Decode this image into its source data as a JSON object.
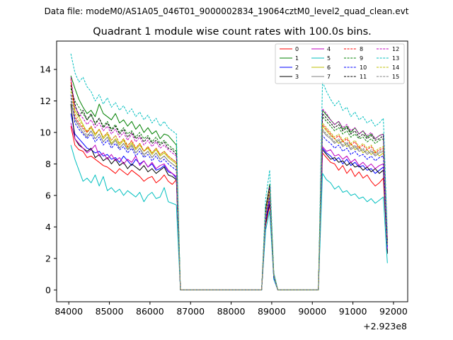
{
  "chart_data": {
    "type": "line",
    "suptitle": "Data file: modeM0/AS1A05_046T01_9000002834_19064cztM0_level2_quad_clean.evt",
    "title": "Quadrant 1 module wise count rates with 100.0s bins.",
    "xlabel": "",
    "ylabel": "",
    "x_offset_label": "+2.923e8",
    "xlim": [
      83700,
      92350
    ],
    "ylim": [
      -0.75,
      15.8
    ],
    "xticks": [
      84000,
      85000,
      86000,
      87000,
      88000,
      89000,
      90000,
      91000,
      92000
    ],
    "yticks": [
      0,
      2,
      4,
      6,
      8,
      10,
      12,
      14
    ],
    "legend_position": "top-right",
    "time_axis": {
      "start": 84050,
      "step": 100,
      "active_segments": [
        {
          "start": 84050,
          "n": 27
        },
        {
          "start": 90250,
          "n": 17
        }
      ],
      "flare_points": [
        88850,
        88950,
        89050
      ],
      "zero_points": [
        86750,
        88750,
        89150,
        90150
      ]
    },
    "series": [
      {
        "name": "0",
        "color": "#ff0000",
        "dash": false,
        "seg1": [
          10.4,
          9.2,
          8.9,
          8.8,
          8.4,
          8.5,
          8.3,
          8.1,
          7.9,
          7.8,
          7.6,
          7.4,
          7.7,
          7.5,
          7.3,
          7.6,
          7.4,
          7.2,
          6.9,
          7.1,
          7.2,
          6.8,
          7.0,
          7.3,
          6.9,
          6.7,
          7.0
        ],
        "flare": [
          4.1,
          5.4,
          0.8
        ],
        "seg2": [
          8.7,
          8.4,
          8.1,
          8.0,
          7.6,
          7.9,
          7.4,
          7.7,
          7.2,
          7.5,
          7.1,
          7.3,
          6.9,
          6.6,
          6.8,
          7.1,
          2.5
        ]
      },
      {
        "name": "1",
        "color": "#008000",
        "dash": false,
        "seg1": [
          13.6,
          12.8,
          12.1,
          11.6,
          11.2,
          11.4,
          11.0,
          11.8,
          11.2,
          11.0,
          10.8,
          11.2,
          10.6,
          10.8,
          10.4,
          10.7,
          10.2,
          10.5,
          10.0,
          10.3,
          9.9,
          10.1,
          9.6,
          9.9,
          9.8,
          9.5,
          9.2
        ],
        "flare": [
          5.2,
          6.7,
          1.0
        ],
        "seg2": [
          11.4,
          11.1,
          10.8,
          10.5,
          10.7,
          10.2,
          10.4,
          10.0,
          10.3,
          9.9,
          10.1,
          9.7,
          9.9,
          9.6,
          9.8,
          9.9,
          3.1
        ]
      },
      {
        "name": "2",
        "color": "#0000ff",
        "dash": false,
        "seg1": [
          11.2,
          9.9,
          9.6,
          9.3,
          9.0,
          8.9,
          8.7,
          8.8,
          8.5,
          8.6,
          8.3,
          8.4,
          8.1,
          8.5,
          8.2,
          7.9,
          8.3,
          8.0,
          8.2,
          7.8,
          8.0,
          7.6,
          7.7,
          7.9,
          7.5,
          7.4,
          7.1
        ],
        "flare": [
          4.3,
          5.6,
          0.7
        ],
        "seg2": [
          9.0,
          8.7,
          8.5,
          8.2,
          8.4,
          8.0,
          8.3,
          7.9,
          8.1,
          7.8,
          7.9,
          7.6,
          7.7,
          7.4,
          7.6,
          7.8,
          2.4
        ]
      },
      {
        "name": "3",
        "color": "#000000",
        "dash": false,
        "seg1": [
          11.8,
          9.6,
          9.2,
          9.0,
          8.8,
          9.0,
          8.4,
          8.6,
          8.2,
          8.4,
          8.0,
          8.3,
          7.9,
          8.1,
          7.7,
          8.0,
          7.8,
          7.6,
          7.9,
          7.5,
          7.7,
          7.4,
          7.6,
          7.8,
          7.3,
          7.2,
          7.0
        ],
        "flare": [
          4.2,
          5.5,
          0.8
        ],
        "seg2": [
          8.9,
          8.6,
          8.3,
          8.4,
          8.1,
          8.2,
          7.9,
          8.1,
          7.8,
          7.9,
          7.6,
          7.8,
          7.5,
          7.7,
          7.4,
          7.6,
          2.3
        ]
      },
      {
        "name": "4",
        "color": "#bf00bf",
        "dash": false,
        "seg1": [
          10.6,
          9.6,
          9.3,
          9.0,
          8.7,
          8.9,
          9.2,
          8.5,
          8.7,
          8.3,
          8.6,
          8.2,
          8.4,
          8.0,
          8.3,
          8.1,
          8.5,
          7.9,
          8.2,
          7.8,
          8.1,
          7.7,
          7.9,
          8.0,
          7.6,
          7.4,
          7.2
        ],
        "flare": [
          4.4,
          5.7,
          0.8
        ],
        "seg2": [
          9.1,
          8.8,
          8.9,
          8.5,
          8.6,
          8.3,
          8.5,
          8.1,
          8.3,
          7.9,
          8.1,
          7.8,
          8.0,
          7.7,
          7.9,
          8.0,
          2.6
        ]
      },
      {
        "name": "5",
        "color": "#00bfbf",
        "dash": false,
        "seg1": [
          9.2,
          8.3,
          7.6,
          6.9,
          7.1,
          6.8,
          7.3,
          6.6,
          7.2,
          6.3,
          6.5,
          6.2,
          6.4,
          6.0,
          6.3,
          6.1,
          5.9,
          6.2,
          5.6,
          6.0,
          6.2,
          5.8,
          5.9,
          6.5,
          5.6,
          5.5,
          5.4
        ],
        "flare": [
          3.8,
          5.0,
          0.7
        ],
        "seg2": [
          7.4,
          7.0,
          6.8,
          6.4,
          6.6,
          6.2,
          6.3,
          6.0,
          6.1,
          5.8,
          5.9,
          5.6,
          5.8,
          5.5,
          5.7,
          5.9,
          1.7
        ]
      },
      {
        "name": "6",
        "color": "#bfbf00",
        "dash": false,
        "seg1": [
          13.2,
          11.4,
          11.0,
          10.5,
          10.0,
          10.3,
          9.8,
          10.2,
          9.6,
          9.9,
          9.3,
          9.6,
          9.2,
          9.5,
          9.0,
          9.3,
          8.9,
          9.2,
          8.8,
          9.0,
          8.6,
          8.9,
          8.5,
          8.7,
          8.4,
          8.2,
          8.0
        ],
        "flare": [
          4.9,
          6.2,
          0.9
        ],
        "seg2": [
          10.4,
          10.1,
          9.8,
          9.6,
          9.3,
          9.5,
          9.1,
          9.3,
          8.9,
          9.1,
          8.7,
          8.9,
          8.6,
          8.8,
          8.5,
          8.7,
          2.9
        ]
      },
      {
        "name": "7",
        "color": "#808080",
        "dash": false,
        "seg1": [
          12.0,
          10.8,
          10.4,
          10.0,
          9.7,
          10.1,
          9.6,
          9.9,
          9.4,
          9.7,
          9.2,
          9.5,
          9.0,
          9.3,
          8.9,
          9.2,
          8.7,
          9.0,
          8.6,
          8.8,
          8.4,
          8.7,
          8.3,
          8.5,
          8.2,
          8.0,
          7.8
        ],
        "flare": [
          4.6,
          6.0,
          0.9
        ],
        "seg2": [
          10.1,
          9.8,
          9.6,
          9.3,
          9.5,
          9.1,
          9.3,
          8.9,
          9.1,
          8.8,
          8.9,
          8.6,
          8.8,
          8.5,
          8.7,
          8.8,
          2.8
        ]
      },
      {
        "name": "8",
        "color": "#ff0000",
        "dash": true,
        "seg1": [
          13.4,
          11.0,
          10.6,
          10.3,
          10.0,
          10.4,
          9.9,
          10.2,
          9.7,
          10.0,
          9.5,
          9.8,
          9.3,
          9.6,
          9.1,
          9.5,
          9.0,
          9.3,
          8.8,
          9.1,
          8.7,
          9.0,
          8.6,
          8.8,
          8.5,
          8.3,
          8.1
        ],
        "flare": [
          4.8,
          6.3,
          0.9
        ],
        "seg2": [
          10.5,
          10.2,
          9.9,
          9.6,
          9.8,
          9.4,
          9.6,
          9.2,
          9.4,
          9.0,
          9.2,
          8.9,
          9.1,
          8.7,
          8.9,
          9.0,
          3.0
        ]
      },
      {
        "name": "9",
        "color": "#008000",
        "dash": true,
        "seg1": [
          12.8,
          12.0,
          11.6,
          11.2,
          10.8,
          11.1,
          10.6,
          10.9,
          10.4,
          10.7,
          10.2,
          10.5,
          10.0,
          10.3,
          9.9,
          10.1,
          9.7,
          10.0,
          9.6,
          9.8,
          9.4,
          9.7,
          9.3,
          9.5,
          9.2,
          9.0,
          8.8
        ],
        "flare": [
          5.0,
          6.5,
          1.0
        ],
        "seg2": [
          11.0,
          10.7,
          10.4,
          10.1,
          10.3,
          9.9,
          10.1,
          9.7,
          9.9,
          9.6,
          9.7,
          9.4,
          9.6,
          9.3,
          9.5,
          9.6,
          3.1
        ]
      },
      {
        "name": "10",
        "color": "#0000ff",
        "dash": true,
        "seg1": [
          12.4,
          10.6,
          10.2,
          9.9,
          9.6,
          9.9,
          9.4,
          9.7,
          9.2,
          9.5,
          9.0,
          9.3,
          8.9,
          9.1,
          8.7,
          9.0,
          8.5,
          8.8,
          8.4,
          8.6,
          8.2,
          8.5,
          8.1,
          8.3,
          8.0,
          7.8,
          7.6
        ],
        "flare": [
          4.5,
          5.9,
          0.8
        ],
        "seg2": [
          9.8,
          9.5,
          9.3,
          9.0,
          9.2,
          8.8,
          9.0,
          8.6,
          8.8,
          8.5,
          8.6,
          8.3,
          8.5,
          8.2,
          8.4,
          8.5,
          2.7
        ]
      },
      {
        "name": "11",
        "color": "#000000",
        "dash": true,
        "seg1": [
          13.0,
          11.8,
          11.0,
          11.4,
          10.8,
          11.2,
          10.5,
          10.9,
          10.3,
          10.6,
          10.1,
          10.4,
          9.9,
          10.2,
          9.7,
          10.0,
          9.6,
          9.8,
          9.4,
          9.7,
          9.3,
          9.5,
          9.2,
          9.4,
          9.0,
          8.9,
          8.6
        ],
        "flare": [
          5.1,
          6.6,
          1.0
        ],
        "seg2": [
          11.2,
          10.9,
          10.6,
          10.3,
          10.5,
          10.1,
          10.3,
          9.9,
          10.1,
          9.7,
          9.9,
          9.6,
          9.8,
          9.5,
          9.6,
          9.8,
          3.2
        ]
      },
      {
        "name": "12",
        "color": "#bf00bf",
        "dash": true,
        "seg1": [
          13.5,
          11.6,
          11.2,
          10.9,
          10.5,
          10.8,
          10.3,
          10.6,
          10.1,
          10.4,
          9.9,
          10.2,
          9.7,
          10.0,
          9.5,
          9.9,
          9.4,
          9.7,
          9.2,
          9.5,
          9.1,
          9.4,
          9.0,
          9.2,
          8.9,
          8.7,
          8.5
        ],
        "flare": [
          5.0,
          6.5,
          1.0
        ],
        "seg2": [
          11.5,
          11.2,
          10.8,
          10.5,
          10.7,
          10.3,
          10.5,
          10.1,
          10.3,
          9.9,
          10.1,
          9.8,
          10.0,
          9.6,
          9.8,
          9.9,
          3.3
        ]
      },
      {
        "name": "13",
        "color": "#00bfbf",
        "dash": true,
        "seg1": [
          15.0,
          13.8,
          13.2,
          13.5,
          12.9,
          12.6,
          12.0,
          12.4,
          11.8,
          12.2,
          11.6,
          11.9,
          11.4,
          11.7,
          11.2,
          11.5,
          11.0,
          11.3,
          10.8,
          11.1,
          10.6,
          10.9,
          10.4,
          10.7,
          10.3,
          10.1,
          9.9
        ],
        "flare": [
          5.8,
          7.6,
          1.1
        ],
        "seg2": [
          13.2,
          12.6,
          12.1,
          11.7,
          12.0,
          11.4,
          11.6,
          11.0,
          11.3,
          10.8,
          11.0,
          10.6,
          10.8,
          10.4,
          10.6,
          10.9,
          3.6
        ]
      },
      {
        "name": "14",
        "color": "#bfbf00",
        "dash": true,
        "seg1": [
          12.6,
          11.2,
          10.8,
          10.4,
          10.1,
          10.4,
          9.9,
          10.2,
          9.7,
          10.0,
          9.5,
          9.8,
          9.3,
          9.6,
          9.2,
          9.4,
          9.0,
          9.3,
          8.8,
          9.1,
          8.7,
          9.0,
          8.6,
          8.8,
          8.5,
          8.3,
          8.1
        ],
        "flare": [
          4.9,
          6.3,
          0.9
        ],
        "seg2": [
          10.6,
          10.3,
          10.0,
          9.7,
          9.9,
          9.5,
          9.7,
          9.3,
          9.5,
          9.1,
          9.3,
          9.0,
          9.2,
          8.8,
          9.0,
          9.1,
          2.9
        ]
      },
      {
        "name": "15",
        "color": "#808080",
        "dash": true,
        "seg1": [
          12.2,
          10.9,
          10.5,
          10.2,
          9.8,
          10.1,
          9.6,
          9.9,
          9.4,
          9.7,
          9.2,
          9.5,
          9.0,
          9.3,
          8.9,
          9.1,
          8.7,
          9.0,
          8.5,
          8.8,
          8.4,
          8.7,
          8.3,
          8.5,
          8.2,
          8.0,
          7.8
        ],
        "flare": [
          4.7,
          6.1,
          0.9
        ],
        "seg2": [
          10.2,
          9.9,
          9.7,
          9.4,
          9.6,
          9.2,
          9.4,
          9.0,
          9.2,
          8.9,
          9.0,
          8.7,
          8.9,
          8.6,
          8.8,
          8.9,
          2.8
        ]
      }
    ]
  }
}
